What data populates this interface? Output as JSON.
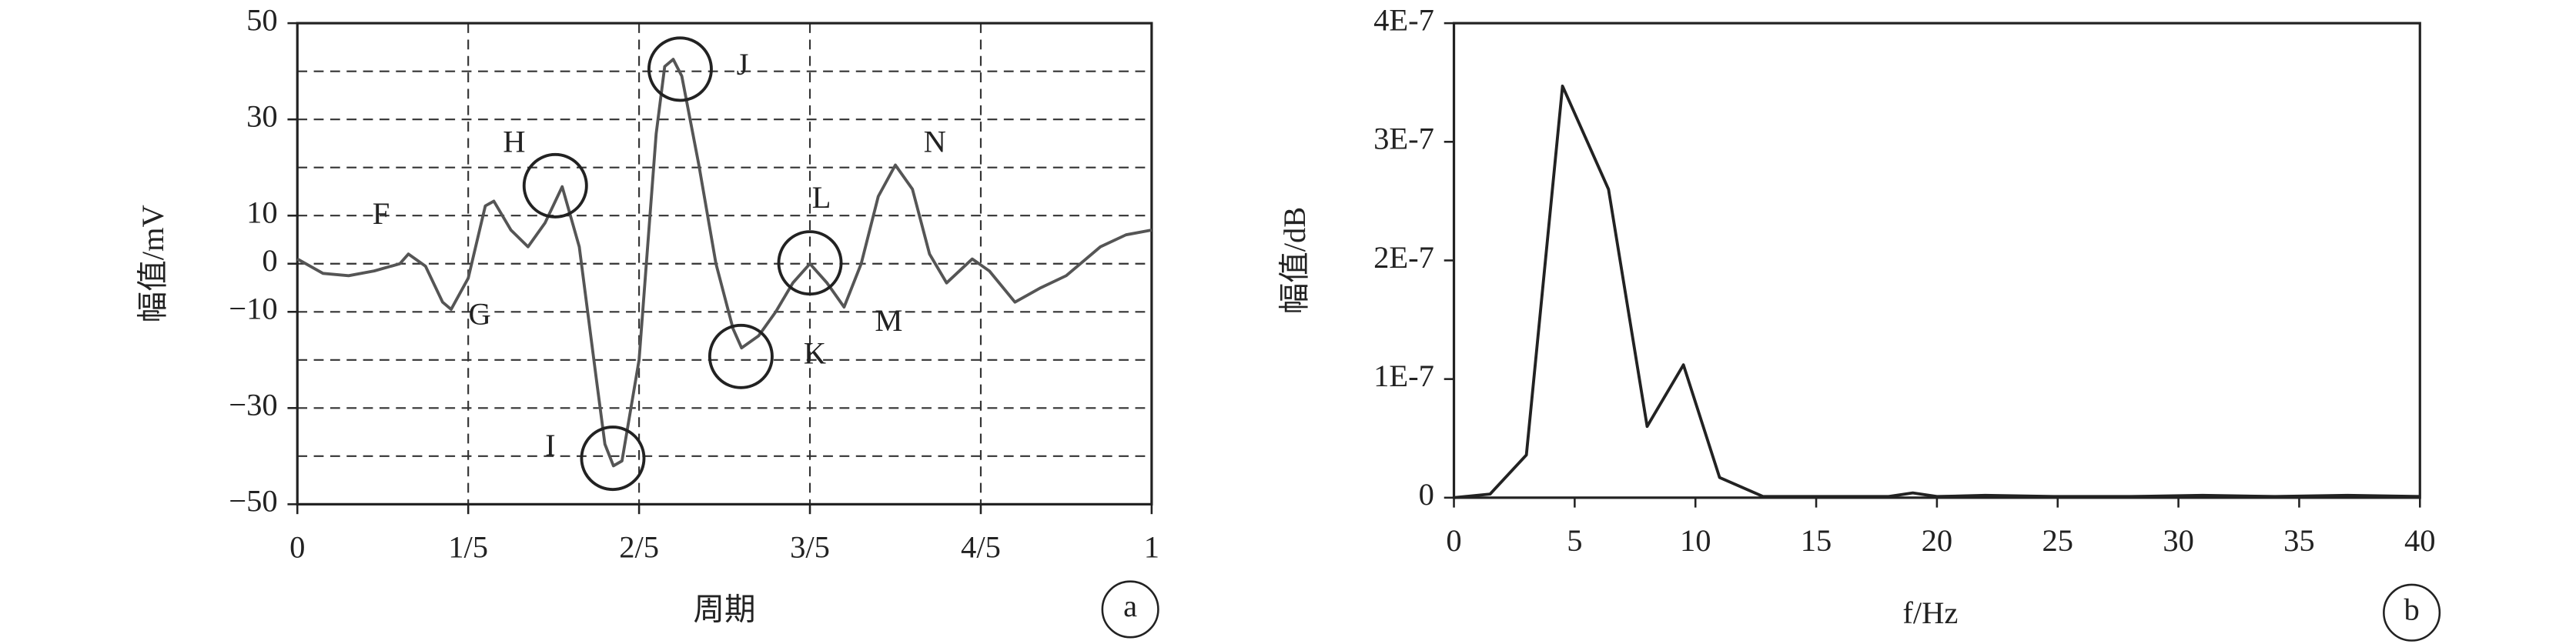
{
  "chart_data": [
    {
      "type": "line",
      "x_label": "周期",
      "y_label": "幅值/mV",
      "panel": "a",
      "color": "#555555",
      "xlim": [
        0,
        1
      ],
      "ylim": [
        -50,
        50
      ],
      "xticks": [
        0,
        {
          "value": 0.2,
          "label": "1/5"
        },
        {
          "value": 0.4,
          "label": "2/5"
        },
        {
          "value": 0.6,
          "label": "3/5"
        },
        {
          "value": 0.8,
          "label": "4/5"
        },
        1
      ],
      "yticks": [
        50,
        30,
        10,
        0,
        {
          "value": -10,
          "label": "−10"
        },
        {
          "value": -30,
          "label": "−30"
        },
        {
          "value": -50,
          "label": "−50"
        }
      ],
      "minor_yticks": [
        40,
        20,
        -20,
        -40
      ],
      "grid": true,
      "annotations": [
        "F",
        "G",
        "H",
        "I",
        "J",
        "K",
        "L",
        "M",
        "N"
      ],
      "x": [
        0,
        0.03,
        0.06,
        0.09,
        0.12,
        0.13,
        0.15,
        0.17,
        0.18,
        0.2,
        0.22,
        0.23,
        0.25,
        0.27,
        0.29,
        0.31,
        0.33,
        0.35,
        0.36,
        0.37,
        0.38,
        0.4,
        0.42,
        0.43,
        0.44,
        0.45,
        0.47,
        0.49,
        0.51,
        0.52,
        0.54,
        0.56,
        0.58,
        0.6,
        0.62,
        0.64,
        0.66,
        0.68,
        0.7,
        0.72,
        0.74,
        0.76,
        0.79,
        0.81,
        0.84,
        0.87,
        0.9,
        0.94,
        0.97,
        1
      ],
      "values": [
        1,
        -2,
        -2.5,
        -1.5,
        0,
        2,
        -0.5,
        -8,
        -9.5,
        -3,
        12,
        13,
        7,
        3.5,
        8.5,
        16,
        3.5,
        -24,
        -37.5,
        -42,
        -41,
        -20,
        27,
        41,
        42.5,
        39,
        20.5,
        0,
        -13.5,
        -17.5,
        -15,
        -10,
        -4,
        0,
        -4,
        -9,
        0,
        14,
        20.5,
        15.5,
        2,
        -4,
        1,
        -1.5,
        -8,
        -5,
        -2.5,
        3.5,
        6,
        7
      ]
    },
    {
      "type": "line",
      "x_label": "f/Hz",
      "y_label": "幅值/dB",
      "panel": "b",
      "color": "#222222",
      "xlim": [
        0,
        40
      ],
      "ylim": [
        0,
        4e-07
      ],
      "xticks": [
        0,
        5,
        10,
        15,
        20,
        25,
        30,
        35,
        40
      ],
      "yticks": [
        0,
        {
          "value": 1e-07,
          "label": "1E-7"
        },
        {
          "value": 2e-07,
          "label": "2E-7"
        },
        {
          "value": 3e-07,
          "label": "3E-7"
        },
        {
          "value": 4e-07,
          "label": "4E-7"
        }
      ],
      "grid": false,
      "x": [
        0,
        1.5,
        3,
        4.5,
        6.4,
        8,
        9.5,
        11,
        12.8,
        15,
        18,
        19,
        20,
        22,
        25,
        28,
        31,
        34,
        37,
        40
      ],
      "values": [
        0,
        3e-09,
        3.6e-08,
        3.47e-07,
        2.6e-07,
        6e-08,
        1.12e-07,
        1.7e-08,
        1e-09,
        1e-09,
        1e-09,
        4e-09,
        1e-09,
        2e-09,
        1e-09,
        1e-09,
        2e-09,
        1e-09,
        2e-09,
        1e-09
      ]
    }
  ]
}
